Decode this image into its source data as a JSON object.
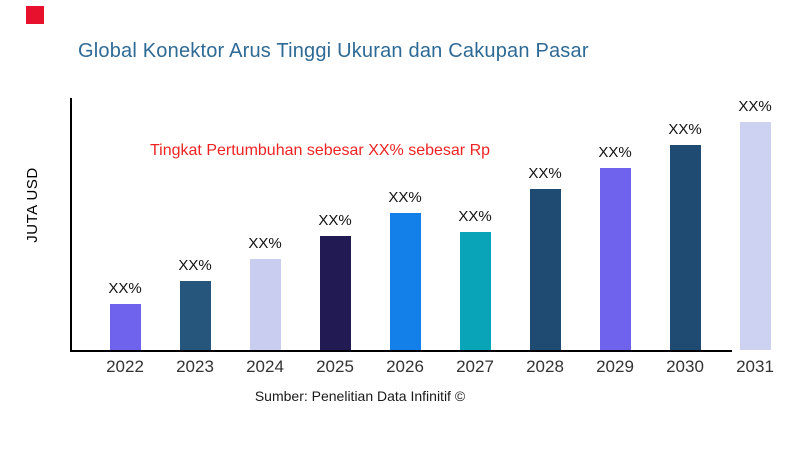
{
  "page": {
    "background": "#ffffff",
    "brand_square_color": "#e8112d"
  },
  "header": {
    "title": "Global Konektor Arus Tinggi Ukuran dan Cakupan Pasar",
    "title_color": "#2e6a96"
  },
  "annotation": {
    "text": "Tingkat Pertumbuhan sebesar XX% sebesar Rp",
    "color": "#ee2424"
  },
  "axes": {
    "y_label": "JUTA USD",
    "axis_color": "#000000"
  },
  "footer": {
    "source": "Sumber: Penelitian Data Infinitif ©"
  },
  "chart_data": {
    "type": "bar",
    "title": "Global Konektor Arus Tinggi Ukuran dan Cakupan Pasar",
    "xlabel": "",
    "ylabel": "JUTA USD",
    "categories": [
      "2022",
      "2023",
      "2024",
      "2025",
      "2026",
      "2027",
      "2028",
      "2029",
      "2030",
      "2031"
    ],
    "bar_value_labels": [
      "XX%",
      "XX%",
      "XX%",
      "XX%",
      "XX%",
      "XX%",
      "XX%",
      "XX%",
      "XX%",
      "XX%"
    ],
    "values": [
      46,
      69,
      91,
      114,
      137,
      118,
      161,
      182,
      205,
      228
    ],
    "value_note": "All bars are labeled with placeholder 'XX%'; values are estimated relative bar heights (px) read from the image, no numeric axis shown",
    "bar_colors": [
      "#6f63ed",
      "#26567c",
      "#c9cdef",
      "#221a52",
      "#1280e8",
      "#09a4b8",
      "#1f4b73",
      "#6f63ed",
      "#1f4b73",
      "#cdd1f2"
    ],
    "grid": false,
    "legend": false,
    "annotation": "Tingkat Pertumbuhan sebesar XX% sebesar Rp"
  }
}
